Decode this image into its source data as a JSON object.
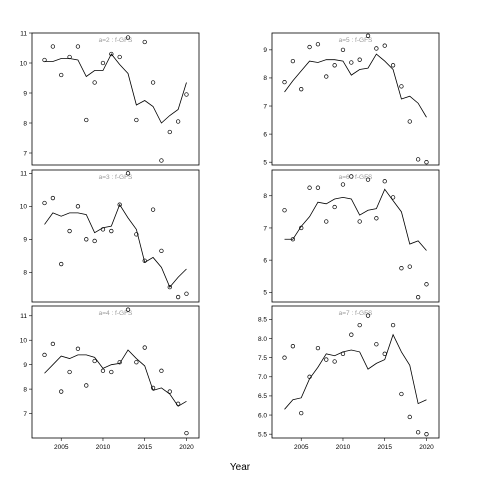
{
  "figure": {
    "xlabel": "Year"
  },
  "chart_data": [
    {
      "type": "scatter",
      "title": "a=2 : f-GFS",
      "xlim": [
        2001.5,
        2021.5
      ],
      "ylim": [
        6.6,
        11.0
      ],
      "yticks": [
        7,
        8,
        9,
        10,
        11
      ],
      "xticks": [],
      "points": {
        "x": [
          2003,
          2004,
          2005,
          2006,
          2007,
          2008,
          2009,
          2010,
          2011,
          2012,
          2013,
          2014,
          2015,
          2016,
          2017,
          2018,
          2019,
          2020
        ],
        "y": [
          10.1,
          10.55,
          9.6,
          10.2,
          10.55,
          8.1,
          9.35,
          10.0,
          10.3,
          10.2,
          10.85,
          8.1,
          10.7,
          9.35,
          6.75,
          7.7,
          8.05,
          8.95
        ]
      },
      "fit": {
        "x": [
          2003,
          2004,
          2005,
          2006,
          2007,
          2008,
          2009,
          2010,
          2011,
          2012,
          2013,
          2014,
          2015,
          2016,
          2017,
          2018,
          2019,
          2020
        ],
        "y": [
          10.05,
          10.05,
          10.15,
          10.15,
          10.1,
          9.55,
          9.75,
          9.75,
          10.3,
          9.95,
          9.65,
          8.6,
          8.75,
          8.55,
          8.0,
          8.25,
          8.45,
          9.35
        ]
      }
    },
    {
      "type": "scatter",
      "title": "a=5 : f-GFS",
      "xlim": [
        2001.5,
        2021.5
      ],
      "ylim": [
        4.9,
        9.6
      ],
      "yticks": [
        5,
        6,
        7,
        8,
        9
      ],
      "xticks": [],
      "points": {
        "x": [
          2003,
          2004,
          2005,
          2006,
          2007,
          2008,
          2009,
          2010,
          2011,
          2012,
          2013,
          2014,
          2015,
          2016,
          2017,
          2018,
          2019,
          2020
        ],
        "y": [
          7.85,
          8.6,
          7.6,
          9.1,
          9.2,
          8.05,
          8.45,
          9.0,
          8.55,
          8.65,
          9.5,
          9.05,
          9.15,
          8.45,
          7.7,
          6.45,
          5.1,
          5.0
        ]
      },
      "fit": {
        "x": [
          2003,
          2004,
          2005,
          2006,
          2007,
          2008,
          2009,
          2010,
          2011,
          2012,
          2013,
          2014,
          2015,
          2016,
          2017,
          2018,
          2019,
          2020
        ],
        "y": [
          7.5,
          7.9,
          8.25,
          8.6,
          8.55,
          8.65,
          8.65,
          8.6,
          8.1,
          8.3,
          8.35,
          8.85,
          8.6,
          8.3,
          7.25,
          7.35,
          7.1,
          6.6
        ]
      }
    },
    {
      "type": "scatter",
      "title": "a=3 : f-GFS",
      "xlim": [
        2001.5,
        2021.5
      ],
      "ylim": [
        7.1,
        11.1
      ],
      "yticks": [
        8,
        9,
        10,
        11
      ],
      "xticks": [],
      "points": {
        "x": [
          2003,
          2004,
          2005,
          2006,
          2007,
          2008,
          2009,
          2010,
          2011,
          2012,
          2013,
          2014,
          2015,
          2016,
          2017,
          2018,
          2019,
          2020
        ],
        "y": [
          10.1,
          10.25,
          8.25,
          9.25,
          10.0,
          9.0,
          8.95,
          9.3,
          9.25,
          10.05,
          11.0,
          9.15,
          8.35,
          9.9,
          8.65,
          7.55,
          7.25,
          7.35
        ]
      },
      "fit": {
        "x": [
          2003,
          2004,
          2005,
          2006,
          2007,
          2008,
          2009,
          2010,
          2011,
          2012,
          2013,
          2014,
          2015,
          2016,
          2017,
          2018,
          2019,
          2020
        ],
        "y": [
          9.45,
          9.8,
          9.7,
          9.8,
          9.8,
          9.75,
          9.2,
          9.35,
          9.4,
          10.05,
          9.65,
          9.3,
          8.3,
          8.45,
          8.15,
          7.55,
          7.85,
          8.1
        ]
      }
    },
    {
      "type": "scatter",
      "title": "a=6 : f-GFS",
      "xlim": [
        2001.5,
        2021.5
      ],
      "ylim": [
        4.7,
        8.8
      ],
      "yticks": [
        5,
        6,
        7,
        8
      ],
      "xticks": [],
      "points": {
        "x": [
          2003,
          2004,
          2005,
          2006,
          2007,
          2008,
          2009,
          2010,
          2011,
          2012,
          2013,
          2014,
          2015,
          2016,
          2017,
          2018,
          2019,
          2020
        ],
        "y": [
          7.55,
          6.65,
          7.0,
          8.25,
          8.25,
          7.2,
          7.65,
          8.35,
          8.6,
          7.2,
          8.5,
          7.3,
          8.45,
          7.95,
          5.75,
          5.8,
          4.85,
          5.25
        ]
      },
      "fit": {
        "x": [
          2003,
          2004,
          2005,
          2006,
          2007,
          2008,
          2009,
          2010,
          2011,
          2012,
          2013,
          2014,
          2015,
          2016,
          2017,
          2018,
          2019,
          2020
        ],
        "y": [
          6.65,
          6.65,
          7.05,
          7.35,
          7.8,
          7.75,
          7.9,
          7.95,
          7.9,
          7.4,
          7.55,
          7.6,
          8.2,
          7.85,
          7.5,
          6.5,
          6.6,
          6.3
        ]
      }
    },
    {
      "type": "scatter",
      "title": "a=4 : f-GFS",
      "xlim": [
        2001.5,
        2021.5
      ],
      "ylim": [
        6.0,
        11.4
      ],
      "yticks": [
        7,
        8,
        9,
        10,
        11
      ],
      "xticks": [
        2005,
        2010,
        2015,
        2020
      ],
      "points": {
        "x": [
          2003,
          2004,
          2005,
          2006,
          2007,
          2008,
          2009,
          2010,
          2011,
          2012,
          2013,
          2014,
          2015,
          2016,
          2017,
          2018,
          2019,
          2020
        ],
        "y": [
          9.4,
          9.85,
          7.9,
          8.7,
          9.65,
          8.15,
          9.15,
          8.75,
          8.7,
          9.1,
          11.25,
          9.1,
          9.7,
          8.05,
          8.75,
          7.9,
          7.4,
          6.2
        ]
      },
      "fit": {
        "x": [
          2003,
          2004,
          2005,
          2006,
          2007,
          2008,
          2009,
          2010,
          2011,
          2012,
          2013,
          2014,
          2015,
          2016,
          2017,
          2018,
          2019,
          2020
        ],
        "y": [
          8.65,
          9.0,
          9.35,
          9.25,
          9.4,
          9.4,
          9.3,
          8.85,
          9.0,
          9.05,
          9.6,
          9.25,
          8.95,
          7.95,
          8.05,
          7.8,
          7.3,
          7.5
        ]
      }
    },
    {
      "type": "scatter",
      "title": "a=7 : f-GFS",
      "xlim": [
        2001.5,
        2021.5
      ],
      "ylim": [
        5.4,
        8.85
      ],
      "yticks": [
        5.5,
        6.0,
        6.5,
        7.0,
        7.5,
        8.0,
        8.5
      ],
      "xticks": [
        2005,
        2010,
        2015,
        2020
      ],
      "points": {
        "x": [
          2003,
          2004,
          2005,
          2006,
          2007,
          2008,
          2009,
          2010,
          2011,
          2012,
          2013,
          2014,
          2015,
          2016,
          2017,
          2018,
          2019,
          2020
        ],
        "y": [
          7.5,
          7.8,
          6.05,
          7.0,
          7.75,
          7.45,
          7.4,
          7.6,
          8.1,
          8.35,
          8.6,
          7.85,
          7.6,
          8.35,
          6.55,
          5.95,
          5.55,
          5.5
        ]
      },
      "fit": {
        "x": [
          2003,
          2004,
          2005,
          2006,
          2007,
          2008,
          2009,
          2010,
          2011,
          2012,
          2013,
          2014,
          2015,
          2016,
          2017,
          2018,
          2019,
          2020
        ],
        "y": [
          6.15,
          6.4,
          6.45,
          6.95,
          7.25,
          7.6,
          7.55,
          7.65,
          7.7,
          7.65,
          7.2,
          7.35,
          7.45,
          8.1,
          7.65,
          7.3,
          6.3,
          6.4
        ]
      }
    }
  ]
}
